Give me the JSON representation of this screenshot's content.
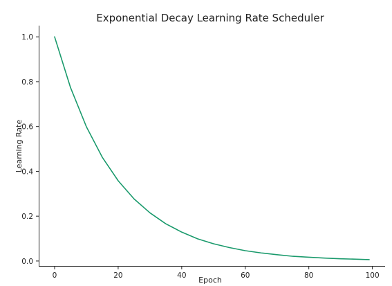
{
  "chart_data": {
    "type": "line",
    "title": "Exponential Decay Learning Rate Scheduler",
    "xlabel": "Epoch",
    "ylabel": "Learning Rate",
    "xlim": [
      -5,
      104
    ],
    "ylim": [
      -0.025,
      1.05
    ],
    "xticks": [
      0,
      20,
      40,
      60,
      80,
      100
    ],
    "yticks": [
      0.0,
      0.2,
      0.4,
      0.6,
      0.8,
      1.0
    ],
    "xtick_labels": [
      "0",
      "20",
      "40",
      "60",
      "80",
      "100"
    ],
    "ytick_labels": [
      "0.0",
      "0.2",
      "0.4",
      "0.6",
      "0.8",
      "1.0"
    ],
    "grid": false,
    "line_color": "#1a9a6c",
    "series": [
      {
        "x": [
          0,
          5,
          10,
          15,
          20,
          25,
          30,
          35,
          40,
          45,
          50,
          55,
          60,
          65,
          70,
          75,
          80,
          85,
          90,
          95,
          99
        ],
        "values": [
          1.0,
          0.774,
          0.599,
          0.463,
          0.358,
          0.277,
          0.215,
          0.166,
          0.129,
          0.099,
          0.077,
          0.06,
          0.046,
          0.036,
          0.028,
          0.021,
          0.017,
          0.013,
          0.01,
          0.008,
          0.006
        ]
      }
    ]
  }
}
